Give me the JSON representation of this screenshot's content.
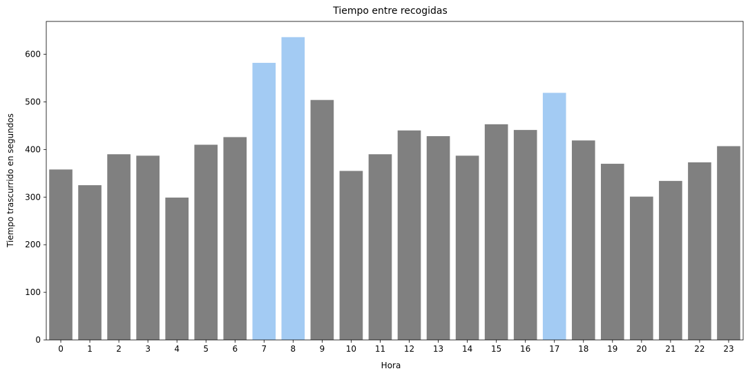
{
  "chart_data": {
    "type": "bar",
    "title": "Tiempo entre recogidas",
    "xlabel": "Hora",
    "ylabel": "Tiempo trascurrido en segundos",
    "categories": [
      "0",
      "1",
      "2",
      "3",
      "4",
      "5",
      "6",
      "7",
      "8",
      "9",
      "10",
      "11",
      "12",
      "13",
      "14",
      "15",
      "16",
      "17",
      "18",
      "19",
      "20",
      "21",
      "22",
      "23"
    ],
    "values": [
      358,
      325,
      390,
      387,
      299,
      410,
      426,
      582,
      636,
      504,
      355,
      390,
      440,
      428,
      387,
      453,
      441,
      519,
      419,
      370,
      301,
      334,
      373,
      407
    ],
    "highlighted": [
      "7",
      "8",
      "17"
    ],
    "colors": {
      "default": "#808080",
      "highlight": "#a3cbf3"
    },
    "ylim": [
      0,
      669
    ],
    "yticks": [
      0,
      100,
      200,
      300,
      400,
      500,
      600
    ],
    "grid": false,
    "legend": "none"
  }
}
